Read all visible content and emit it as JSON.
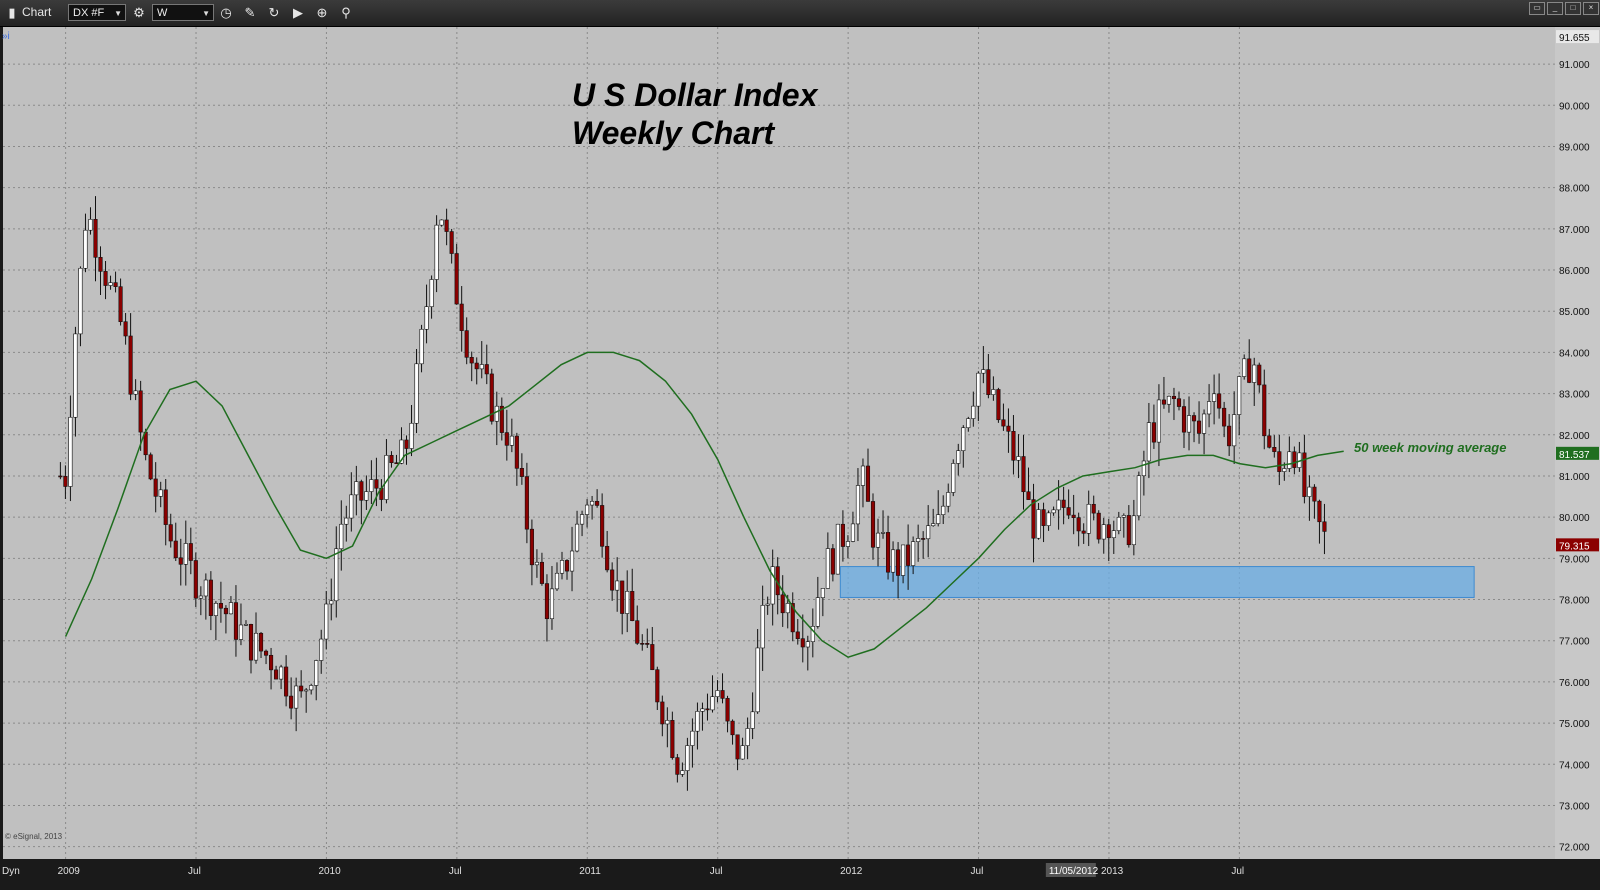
{
  "toolbar": {
    "title": "Chart",
    "symbol": "DX #F",
    "interval": "W"
  },
  "footer": {
    "dyn_label": "Dyn",
    "copyright": "© eSignal, 2013",
    "crosshair_date": "11/05/2012"
  },
  "colors": {
    "background": "#c0c0c0",
    "down_candle": "#8b0000",
    "up_candle": "#ffffff",
    "moving_average": "#1f6e1f",
    "support_zone": "#6aaee6"
  },
  "chart_data": {
    "type": "candlestick",
    "title": "U S Dollar Index\nWeekly Chart",
    "x_labels": [
      "2009",
      "Jul",
      "2010",
      "Jul",
      "2011",
      "Jul",
      "2012",
      "Jul",
      "2013",
      "Jul"
    ],
    "y_ticks": [
      "91.000",
      "90.000",
      "89.000",
      "88.000",
      "87.000",
      "86.000",
      "85.000",
      "84.000",
      "83.000",
      "82.000",
      "81.000",
      "80.000",
      "79.000",
      "78.000",
      "77.000",
      "76.000",
      "75.000",
      "74.000",
      "73.000",
      "72.000"
    ],
    "ylim": [
      71.7,
      91.9
    ],
    "price_labels": {
      "high": "91.655",
      "ma": "81.537",
      "last": "79.315"
    },
    "series": [
      {
        "name": "50 week moving average",
        "anchors": [
          [
            2009.0,
            77.1
          ],
          [
            2009.1,
            78.5
          ],
          [
            2009.2,
            80.2
          ],
          [
            2009.3,
            82.0
          ],
          [
            2009.4,
            83.1
          ],
          [
            2009.5,
            83.3
          ],
          [
            2009.6,
            82.7
          ],
          [
            2009.7,
            81.5
          ],
          [
            2009.8,
            80.3
          ],
          [
            2009.9,
            79.2
          ],
          [
            2010.0,
            79.0
          ],
          [
            2010.1,
            79.3
          ],
          [
            2010.2,
            80.6
          ],
          [
            2010.3,
            81.5
          ],
          [
            2010.4,
            81.8
          ],
          [
            2010.5,
            82.1
          ],
          [
            2010.6,
            82.4
          ],
          [
            2010.7,
            82.7
          ],
          [
            2010.8,
            83.2
          ],
          [
            2010.9,
            83.7
          ],
          [
            2011.0,
            84.0
          ],
          [
            2011.1,
            84.0
          ],
          [
            2011.2,
            83.8
          ],
          [
            2011.3,
            83.3
          ],
          [
            2011.4,
            82.5
          ],
          [
            2011.5,
            81.4
          ],
          [
            2011.6,
            80.0
          ],
          [
            2011.7,
            78.7
          ],
          [
            2011.8,
            77.7
          ],
          [
            2011.9,
            77.0
          ],
          [
            2012.0,
            76.6
          ],
          [
            2012.1,
            76.8
          ],
          [
            2012.2,
            77.3
          ],
          [
            2012.3,
            77.8
          ],
          [
            2012.4,
            78.4
          ],
          [
            2012.5,
            79.0
          ],
          [
            2012.6,
            79.7
          ],
          [
            2012.7,
            80.3
          ],
          [
            2012.8,
            80.7
          ],
          [
            2012.9,
            81.0
          ],
          [
            2013.0,
            81.1
          ],
          [
            2013.1,
            81.2
          ],
          [
            2013.2,
            81.4
          ],
          [
            2013.3,
            81.5
          ],
          [
            2013.4,
            81.5
          ],
          [
            2013.5,
            81.3
          ],
          [
            2013.6,
            81.2
          ],
          [
            2013.7,
            81.3
          ],
          [
            2013.8,
            81.5
          ],
          [
            2013.9,
            81.6
          ]
        ]
      },
      {
        "name": "close",
        "anchors": [
          [
            2009.0,
            81.0
          ],
          [
            2009.03,
            84.0
          ],
          [
            2009.08,
            87.5
          ],
          [
            2009.15,
            86.0
          ],
          [
            2009.22,
            84.5
          ],
          [
            2009.3,
            81.5
          ],
          [
            2009.4,
            79.5
          ],
          [
            2009.5,
            78.5
          ],
          [
            2009.6,
            77.8
          ],
          [
            2009.7,
            77.0
          ],
          [
            2009.8,
            76.5
          ],
          [
            2009.9,
            75.5
          ],
          [
            2010.0,
            77.5
          ],
          [
            2010.05,
            79.8
          ],
          [
            2010.1,
            80.3
          ],
          [
            2010.2,
            80.8
          ],
          [
            2010.3,
            81.5
          ],
          [
            2010.35,
            83.5
          ],
          [
            2010.4,
            86.0
          ],
          [
            2010.43,
            87.8
          ],
          [
            2010.48,
            86.0
          ],
          [
            2010.55,
            84.0
          ],
          [
            2010.65,
            82.5
          ],
          [
            2010.7,
            82.0
          ],
          [
            2010.75,
            80.5
          ],
          [
            2010.8,
            78.8
          ],
          [
            2010.85,
            77.8
          ],
          [
            2010.9,
            78.5
          ],
          [
            2011.0,
            80.5
          ],
          [
            2011.05,
            80.0
          ],
          [
            2011.1,
            78.5
          ],
          [
            2011.2,
            77.0
          ],
          [
            2011.3,
            75.2
          ],
          [
            2011.35,
            74.0
          ],
          [
            2011.4,
            74.8
          ],
          [
            2011.45,
            75.5
          ],
          [
            2011.5,
            75.8
          ],
          [
            2011.55,
            74.5
          ],
          [
            2011.6,
            74.2
          ],
          [
            2011.65,
            76.5
          ],
          [
            2011.7,
            78.5
          ],
          [
            2011.8,
            77.5
          ],
          [
            2011.85,
            77.2
          ],
          [
            2011.9,
            78.6
          ],
          [
            2012.0,
            79.8
          ],
          [
            2012.05,
            81.0
          ],
          [
            2012.1,
            79.5
          ],
          [
            2012.15,
            79.0
          ],
          [
            2012.2,
            78.8
          ],
          [
            2012.3,
            79.5
          ],
          [
            2012.35,
            79.8
          ],
          [
            2012.4,
            81.5
          ],
          [
            2012.45,
            82.5
          ],
          [
            2012.5,
            83.5
          ],
          [
            2012.55,
            82.8
          ],
          [
            2012.6,
            82.0
          ],
          [
            2012.65,
            81.3
          ],
          [
            2012.7,
            80.0
          ],
          [
            2012.75,
            79.5
          ],
          [
            2012.8,
            80.0
          ],
          [
            2012.85,
            80.5
          ],
          [
            2012.9,
            80.0
          ],
          [
            2012.95,
            79.8
          ],
          [
            2013.0,
            80.0
          ],
          [
            2013.05,
            79.5
          ],
          [
            2013.1,
            80.0
          ],
          [
            2013.15,
            82.0
          ],
          [
            2013.2,
            82.5
          ],
          [
            2013.25,
            82.8
          ],
          [
            2013.3,
            82.3
          ],
          [
            2013.35,
            82.0
          ],
          [
            2013.4,
            83.5
          ],
          [
            2013.45,
            81.8
          ],
          [
            2013.5,
            83.0
          ],
          [
            2013.55,
            84.0
          ],
          [
            2013.6,
            82.0
          ],
          [
            2013.65,
            81.0
          ],
          [
            2013.7,
            82.0
          ],
          [
            2013.75,
            80.5
          ],
          [
            2013.8,
            79.8
          ],
          [
            2013.84,
            79.3
          ]
        ]
      }
    ],
    "annotations": [
      {
        "text": "50 week moving average"
      },
      {
        "type": "band",
        "ymin": 78.05,
        "ymax": 78.8,
        "x_start": 2011.97,
        "x_end": 2014.4
      }
    ]
  }
}
